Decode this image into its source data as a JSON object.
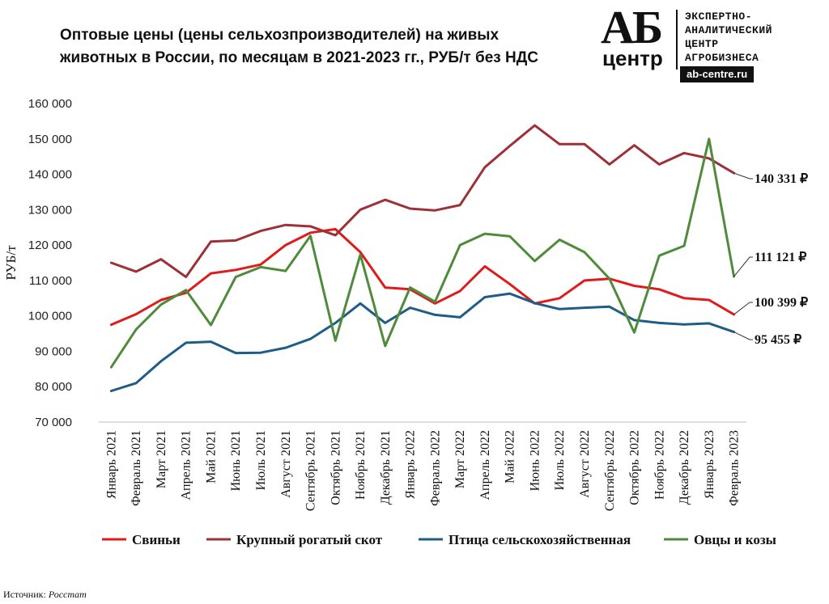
{
  "header": {
    "title_line1": "Оптовые цены (цены сельхозпроизводителей) на живых",
    "title_line2": "животных в России, по месяцам в 2021-2023 гг., РУБ/т без НДС"
  },
  "logo": {
    "mark_top": "АБ",
    "mark_bottom": "центр",
    "line1": "ЭКСПЕРТНО-",
    "line2": "АНАЛИТИЧЕСКИЙ",
    "line3": "ЦЕНТР",
    "line4": "АГРОБИЗНЕСА",
    "url": "ab-centre.ru"
  },
  "source": {
    "label": "Источник:",
    "value": "Росстат"
  },
  "chart_data": {
    "type": "line",
    "ylabel": "РУБ/т",
    "ylim": [
      70000,
      160000
    ],
    "ytick_labels": [
      "70 000",
      "80 000",
      "90 000",
      "100 000",
      "110 000",
      "120 000",
      "130 000",
      "140 000",
      "150 000",
      "160 000"
    ],
    "categories": [
      "Январь 2021",
      "Февраль 2021",
      "Март 2021",
      "Апрель 2021",
      "Май 2021",
      "Июнь 2021",
      "Июль 2021",
      "Август 2021",
      "Сентябрь 2021",
      "Октябрь 2021",
      "Ноябрь 2021",
      "Декабрь 2021",
      "Январь 2022",
      "Февраль 2022",
      "Март 2022",
      "Апрель 2022",
      "Май 2022",
      "Июнь 2022",
      "Июль 2022",
      "Август 2022",
      "Сентябрь 2022",
      "Октябрь 2022",
      "Ноябрь 2022",
      "Декабрь 2022",
      "Январь 2023",
      "Февраль 2023"
    ],
    "series": [
      {
        "name": "Свиньи",
        "color": "#e01b1b",
        "end_label": "100 399 ₽",
        "values": [
          97500,
          100500,
          104500,
          106500,
          112000,
          113000,
          114500,
          120000,
          123500,
          124500,
          118000,
          108000,
          107500,
          103500,
          107000,
          114000,
          109000,
          103500,
          105000,
          110000,
          110500,
          108500,
          107500,
          105000,
          104500,
          100399
        ]
      },
      {
        "name": "Крупный рогатый скот",
        "color": "#9e3038",
        "end_label": "140 331 ₽",
        "values": [
          115000,
          112500,
          116000,
          111000,
          121000,
          121300,
          124000,
          125700,
          125300,
          122800,
          130000,
          132800,
          130300,
          129800,
          131300,
          142000,
          148000,
          153800,
          148500,
          148500,
          142800,
          148200,
          142800,
          146000,
          144500,
          140331
        ]
      },
      {
        "name": "Птица сельскохозяйственная",
        "color": "#1f5c86",
        "end_label": "95 455 ₽",
        "values": [
          78800,
          81000,
          87200,
          92400,
          92700,
          89500,
          89600,
          91000,
          93500,
          98000,
          103500,
          98000,
          102300,
          100300,
          99600,
          105300,
          106300,
          103600,
          101900,
          102300,
          102600,
          98800,
          98000,
          97600,
          97900,
          95455
        ]
      },
      {
        "name": "Овцы и козы",
        "color": "#4f8b3b",
        "end_label": "111 121 ₽",
        "values": [
          85500,
          96200,
          103200,
          107300,
          97400,
          111000,
          113800,
          112700,
          122600,
          93000,
          117300,
          91500,
          108000,
          104000,
          120000,
          123200,
          122500,
          115500,
          121500,
          118000,
          110500,
          95300,
          117000,
          119800,
          150000,
          111121
        ]
      }
    ]
  }
}
